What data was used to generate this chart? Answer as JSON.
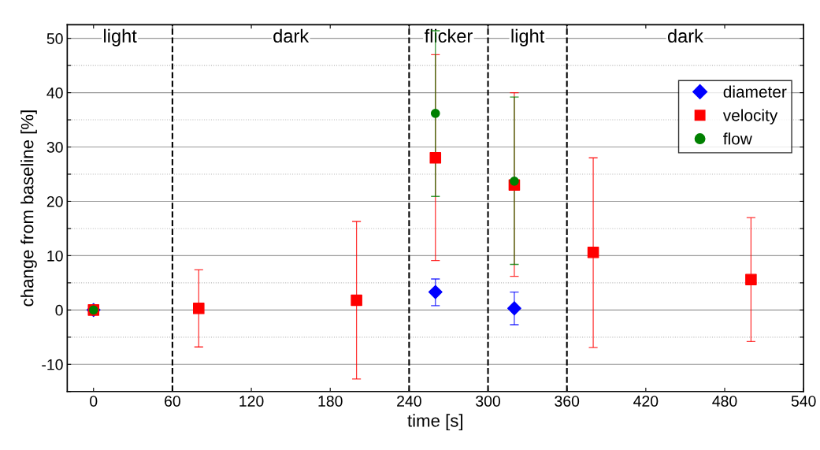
{
  "chart_data": {
    "type": "scatter",
    "xlabel": "time [s]",
    "ylabel": "change from baseline [%]",
    "xlim": [
      -20,
      540
    ],
    "xticks": [
      0,
      60,
      120,
      180,
      240,
      300,
      360,
      420,
      480,
      540
    ],
    "ylim": [
      -15,
      52.5
    ],
    "yticks": [
      {
        "value": -15,
        "label": null
      },
      -10,
      {
        "value": -5,
        "label": null
      },
      0,
      {
        "value": 5,
        "label": null
      },
      10,
      {
        "value": 15,
        "label": null
      },
      20,
      {
        "value": 25,
        "label": null
      },
      30,
      {
        "value": 35,
        "label": null
      },
      40,
      {
        "value": 45,
        "label": null
      },
      50
    ],
    "grid": "y",
    "legend": "top right",
    "series": [
      {
        "name": "diameter",
        "color": "#0000ff",
        "marker": "diamond",
        "x": [
          0,
          260,
          320
        ],
        "values": [
          0,
          3.3,
          0.3
        ],
        "errors": [
          null,
          [
            0.8,
            5.7
          ],
          [
            -2.7,
            3.3
          ]
        ]
      },
      {
        "name": "velocity",
        "color": "#ff0000",
        "marker": "square",
        "x": [
          0,
          80,
          200,
          260,
          320,
          380,
          500
        ],
        "values": [
          0,
          0.3,
          1.8,
          28.0,
          23.0,
          10.6,
          5.6
        ],
        "errors": [
          null,
          [
            -6.8,
            7.4
          ],
          [
            -12.7,
            16.3
          ],
          [
            9.1,
            47.0
          ],
          [
            6.2,
            40.0
          ],
          [
            -6.9,
            28.0
          ],
          [
            -5.8,
            17.0
          ]
        ]
      },
      {
        "name": "flow",
        "color": "#008000",
        "marker": "circle",
        "x": [
          0,
          260,
          320
        ],
        "values": [
          0,
          36.2,
          23.7
        ],
        "errors": [
          null,
          [
            20.9,
            51.4
          ],
          [
            8.4,
            39.2
          ]
        ]
      }
    ],
    "ref_lines": [
      {
        "axis": "x",
        "value": 60,
        "line_style": "dashed",
        "color": "#000000"
      },
      {
        "axis": "x",
        "value": 240,
        "line_style": "dashed",
        "color": "#000000"
      },
      {
        "axis": "x",
        "value": 300,
        "line_style": "dashed",
        "color": "#000000"
      },
      {
        "axis": "x",
        "value": 360,
        "line_style": "dashed",
        "color": "#000000"
      }
    ],
    "annotations": [
      "light",
      "dark",
      "flicker",
      "light",
      "dark"
    ]
  }
}
